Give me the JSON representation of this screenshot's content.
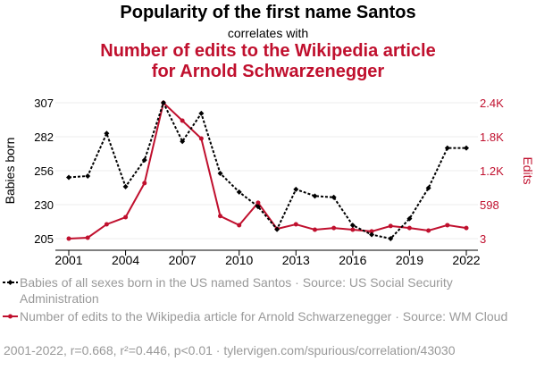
{
  "chart_data": {
    "type": "line",
    "title": "Popularity of the first name Santos",
    "subtitle": "correlates with",
    "title2": "Number of edits to the Wikipedia article for Arnold Schwarzenegger",
    "title2_lines": [
      "Number of edits to the Wikipedia article",
      "for Arnold Schwarzenegger"
    ],
    "x": [
      2001,
      2002,
      2003,
      2004,
      2005,
      2006,
      2007,
      2008,
      2009,
      2010,
      2011,
      2012,
      2013,
      2014,
      2015,
      2016,
      2017,
      2018,
      2019,
      2020,
      2021,
      2022
    ],
    "xticks": [
      "2001",
      "2004",
      "2007",
      "2010",
      "2013",
      "2016",
      "2019",
      "2022"
    ],
    "ylabel_left": "Babies born",
    "ylabel_right": "Edits",
    "ylim_left": [
      205,
      307
    ],
    "ylim_right": [
      3,
      2395
    ],
    "yticks_left": [
      "205",
      "230",
      "256",
      "282",
      "307"
    ],
    "yticks_right": [
      "3",
      "598",
      "1.2K",
      "1.8K",
      "2.4K"
    ],
    "series": [
      {
        "name": "Babies of all sexes born in the US named Santos · Source: US Social Security Administration",
        "axis": "left",
        "color": "#000000",
        "values": [
          251,
          252,
          284,
          244,
          264,
          307,
          278,
          299,
          254,
          240,
          229,
          212,
          242,
          237,
          236,
          215,
          208,
          205,
          220,
          243,
          273,
          273
        ]
      },
      {
        "name": "Number of edits to the Wikipedia article for Arnold Schwarzenegger · Source: WM Cloud",
        "axis": "right",
        "color": "#c0102e",
        "values": [
          3,
          19,
          255,
          380,
          980,
          2395,
          2080,
          1765,
          400,
          240,
          635,
          175,
          255,
          160,
          190,
          160,
          130,
          225,
          190,
          145,
          240,
          190
        ]
      }
    ],
    "footer": "2001-2022, r=0.668, r²=0.446, p<0.01 · tylervigen.com/spurious/correlation/43030"
  }
}
